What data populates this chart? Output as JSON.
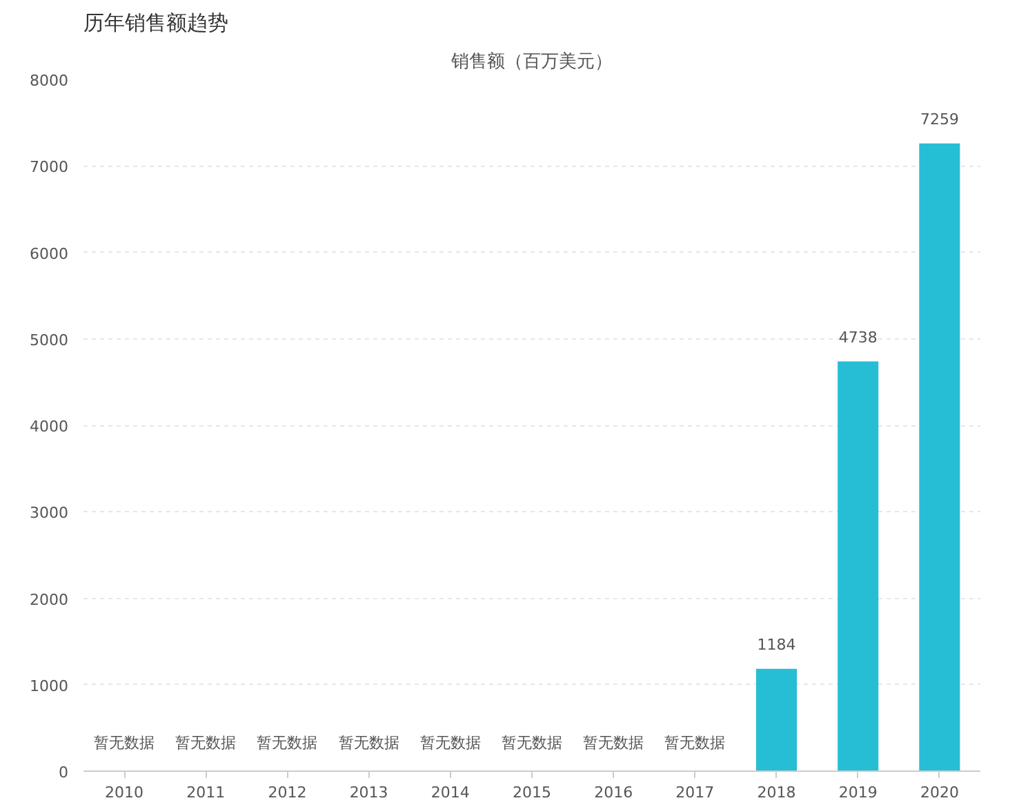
{
  "chart_data": {
    "type": "bar",
    "title": "历年销售额趋势",
    "subtitle": "销售额（百万美元）",
    "categories": [
      "2010",
      "2011",
      "2012",
      "2013",
      "2014",
      "2015",
      "2016",
      "2017",
      "2018",
      "2019",
      "2020"
    ],
    "values": [
      null,
      null,
      null,
      null,
      null,
      null,
      null,
      null,
      1184,
      4738,
      7259
    ],
    "value_labels": [
      "暂无数据",
      "暂无数据",
      "暂无数据",
      "暂无数据",
      "暂无数据",
      "暂无数据",
      "暂无数据",
      "暂无数据",
      "1184",
      "4738",
      "7259"
    ],
    "color": "#26bed4",
    "ylim": [
      0,
      8000
    ],
    "yticks": [
      0,
      1000,
      2000,
      3000,
      4000,
      5000,
      6000,
      7000,
      8000
    ],
    "grid": "y"
  }
}
